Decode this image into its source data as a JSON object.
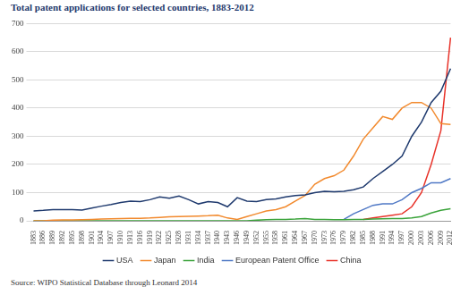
{
  "chart_data": {
    "type": "line",
    "title": "Total patent applications for selected countries, 1883-2012",
    "annotations": [
      "Source: WIPO Statistical Database through Leonard 2014"
    ],
    "categories": [
      "1883",
      "1886",
      "1889",
      "1892",
      "1895",
      "1898",
      "1901",
      "1904",
      "1907",
      "1910",
      "1913",
      "1916",
      "1919",
      "1922",
      "1925",
      "1928",
      "1931",
      "1934",
      "1937",
      "1940",
      "1943",
      "1946",
      "1949",
      "1952",
      "1955",
      "1958",
      "1961",
      "1964",
      "1967",
      "1970",
      "1973",
      "1976",
      "1979",
      "1982",
      "1985",
      "1988",
      "1991",
      "1994",
      "1997",
      "2000",
      "2003",
      "2006",
      "2009",
      "2012"
    ],
    "series": [
      {
        "name": "USA",
        "color": "#1f3a6e",
        "values": [
          35,
          37,
          40,
          40,
          40,
          38,
          45,
          52,
          58,
          65,
          70,
          68,
          75,
          85,
          80,
          88,
          75,
          60,
          68,
          65,
          50,
          82,
          70,
          68,
          75,
          78,
          85,
          90,
          92,
          100,
          105,
          103,
          105,
          110,
          120,
          150,
          175,
          200,
          230,
          300,
          350,
          420,
          460,
          540
        ]
      },
      {
        "name": "Japan",
        "color": "#f28a2e",
        "values": [
          0,
          0,
          2,
          3,
          3,
          4,
          5,
          6,
          7,
          8,
          9,
          9,
          10,
          12,
          14,
          15,
          16,
          17,
          18,
          20,
          10,
          5,
          15,
          25,
          35,
          40,
          50,
          70,
          90,
          130,
          150,
          160,
          180,
          230,
          290,
          330,
          370,
          360,
          400,
          420,
          420,
          400,
          345,
          342
        ]
      },
      {
        "name": "India",
        "color": "#3aa33a",
        "values": [
          0,
          0,
          0,
          0,
          0,
          0,
          0,
          0,
          0,
          0,
          0,
          0,
          0,
          0,
          0,
          0,
          0,
          0,
          0,
          0,
          0,
          0,
          0,
          2,
          4,
          5,
          5,
          6,
          8,
          5,
          5,
          4,
          4,
          5,
          5,
          6,
          7,
          8,
          8,
          10,
          15,
          28,
          37,
          43
        ]
      },
      {
        "name": "European Patent Office",
        "color": "#4f78c5",
        "values": [
          null,
          null,
          null,
          null,
          null,
          null,
          null,
          null,
          null,
          null,
          null,
          null,
          null,
          null,
          null,
          null,
          null,
          null,
          null,
          null,
          null,
          null,
          null,
          null,
          null,
          null,
          null,
          null,
          null,
          null,
          null,
          null,
          5,
          25,
          40,
          55,
          60,
          60,
          75,
          100,
          115,
          135,
          135,
          150
        ]
      },
      {
        "name": "China",
        "color": "#e8332a",
        "values": [
          null,
          null,
          null,
          null,
          null,
          null,
          null,
          null,
          null,
          null,
          null,
          null,
          null,
          null,
          null,
          null,
          null,
          null,
          null,
          null,
          null,
          null,
          null,
          null,
          null,
          null,
          null,
          null,
          null,
          null,
          null,
          null,
          null,
          null,
          5,
          10,
          15,
          20,
          25,
          50,
          100,
          200,
          320,
          650
        ]
      }
    ],
    "ylim": [
      0,
      700
    ],
    "yticks": [
      0,
      100,
      200,
      300,
      400,
      500,
      600,
      700
    ],
    "grid": true,
    "legend": "bottom"
  }
}
